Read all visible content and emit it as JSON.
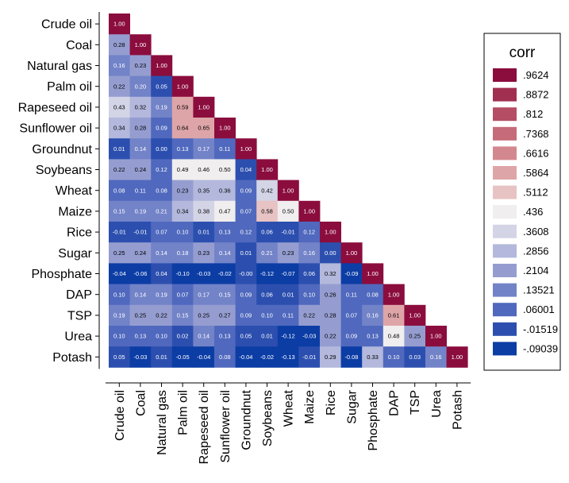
{
  "chart_data": {
    "type": "heatmap",
    "variables": [
      "Crude oil",
      "Coal",
      "Natural gas",
      "Palm oil",
      "Rapeseed oil",
      "Sunflower oil",
      "Groundnut",
      "Soybeans",
      "Wheat",
      "Maize",
      "Rice",
      "Sugar",
      "Phosphate",
      "DAP",
      "TSP",
      "Urea",
      "Potash"
    ],
    "cell_labels": [
      [
        "1.00"
      ],
      [
        "0.28",
        "1.00"
      ],
      [
        "0.16",
        "0.23",
        "1.00"
      ],
      [
        "0.22",
        "0.20",
        "0.05",
        "1.00"
      ],
      [
        "0.43",
        "0.32",
        "0.19",
        "0.59",
        "1.00"
      ],
      [
        "0.34",
        "0.28",
        "0.09",
        "0.64",
        "0.65",
        "1.00"
      ],
      [
        "0.01",
        "0.14",
        "0.00",
        "0.13",
        "0.17",
        "0.11",
        "1.00"
      ],
      [
        "0.22",
        "0.24",
        "0.12",
        "0.49",
        "0.46",
        "0.50",
        "0.04",
        "1.00"
      ],
      [
        "0.08",
        "0.11",
        "0.08",
        "0.23",
        "0.35",
        "0.36",
        "0.09",
        "0.42",
        "1.00"
      ],
      [
        "0.15",
        "0.19",
        "0.21",
        "0.34",
        "0.38",
        "0.47",
        "0.07",
        "0.58",
        "0.50",
        "1.00"
      ],
      [
        "-0.01",
        "-0.01",
        "0.07",
        "0.10",
        "0.01",
        "0.13",
        "0.12",
        "0.06",
        "-0.01",
        "0.12",
        "1.00"
      ],
      [
        "0.25",
        "0.24",
        "0.14",
        "0.18",
        "0.23",
        "0.14",
        "0.01",
        "0.21",
        "0.23",
        "0.16",
        "0.00",
        "1.00"
      ],
      [
        "-0.04",
        "-0.06",
        "0.04",
        "-0.10",
        "-0.03",
        "-0.02",
        "-0.00",
        "-0.12",
        "-0.07",
        "0.06",
        "0.32",
        "-0.09",
        "1.00"
      ],
      [
        "0.10",
        "0.14",
        "0.19",
        "0.07",
        "0.17",
        "0.15",
        "0.09",
        "0.06",
        "0.01",
        "0.10",
        "0.26",
        "0.11",
        "0.08",
        "1.00"
      ],
      [
        "0.19",
        "0.25",
        "0.22",
        "0.15",
        "0.25",
        "0.27",
        "0.09",
        "0.10",
        "0.11",
        "0.22",
        "0.28",
        "0.07",
        "0.16",
        "0.61",
        "1.00"
      ],
      [
        "0.10",
        "0.13",
        "0.10",
        "0.02",
        "0.14",
        "0.13",
        "0.05",
        "0.01",
        "-0.12",
        "-0.03",
        "0.22",
        "0.09",
        "0.13",
        "0.48",
        "0.25",
        "1.00"
      ],
      [
        "0.05",
        "-0.03",
        "0.01",
        "-0.05",
        "-0.04",
        "0.08",
        "-0.04",
        "-0.02",
        "-0.13",
        "-0.01",
        "0.29",
        "-0.08",
        "0.33",
        "0.10",
        "0.03",
        "0.16",
        "1.00"
      ]
    ],
    "legend": {
      "title": "corr",
      "breaks": [
        ".9624",
        ".8872",
        ".812",
        ".7368",
        ".6616",
        ".5864",
        ".5112",
        ".436",
        ".3608",
        ".2856",
        ".2104",
        ".13521",
        ".06001",
        "-.01519",
        "-.09039"
      ],
      "colors": [
        "#8b0d3d",
        "#a12f50",
        "#b54e64",
        "#c66b79",
        "#d3888f",
        "#dea5a8",
        "#e8c3c3",
        "#f0eeee",
        "#d3d4e6",
        "#b3b8dc",
        "#959dd0",
        "#7383c8",
        "#5069be",
        "#2c4faf",
        "#0c3da5"
      ]
    },
    "legend_position": "right",
    "lower_triangle": true
  }
}
